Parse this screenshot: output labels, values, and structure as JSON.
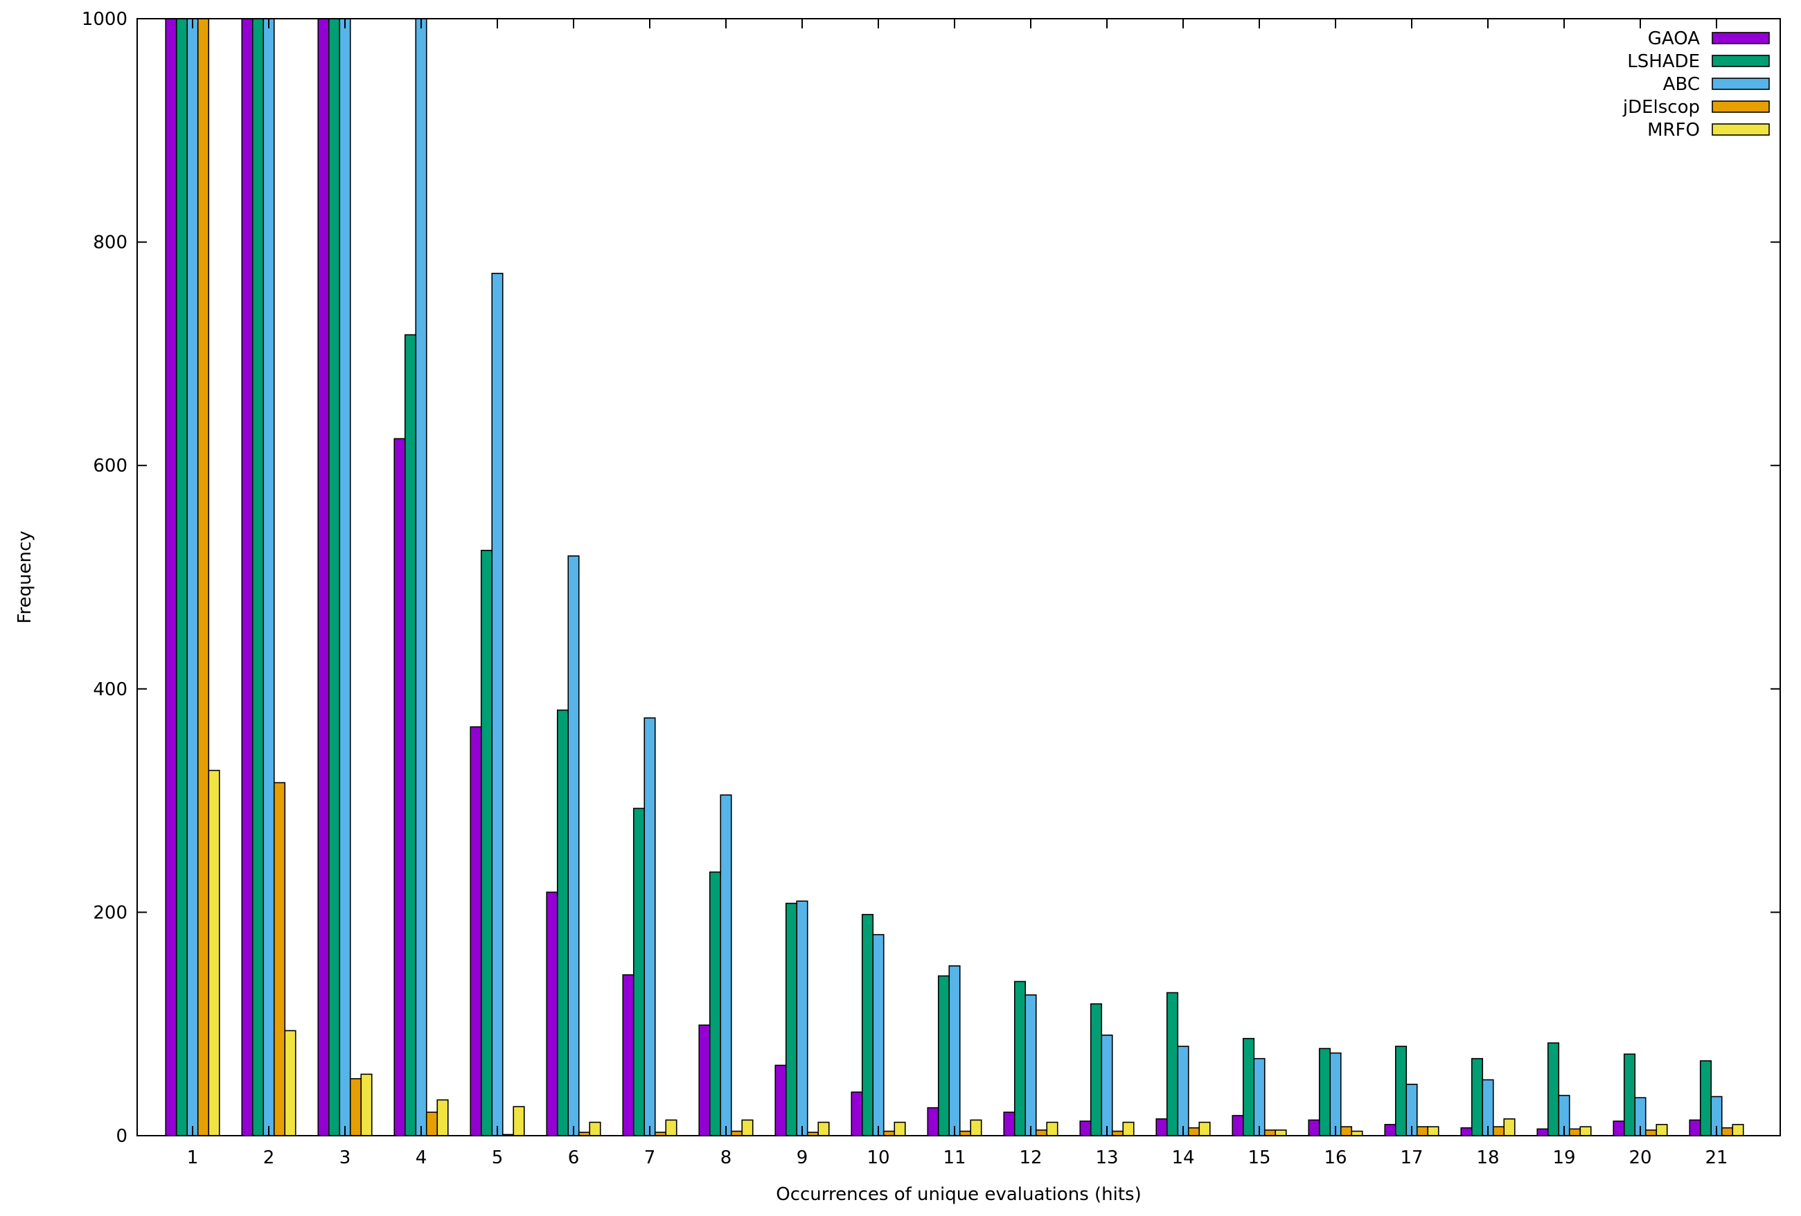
{
  "chart_data": {
    "type": "bar",
    "title": "",
    "xlabel": "Occurrences of unique evaluations (hits)",
    "ylabel": "Frequency",
    "ylim": [
      0,
      1000
    ],
    "yticks": [
      0,
      200,
      400,
      600,
      800,
      1000
    ],
    "grid": false,
    "legend_position": "top-right",
    "categories": [
      "1",
      "2",
      "3",
      "4",
      "5",
      "6",
      "7",
      "8",
      "9",
      "10",
      "11",
      "12",
      "13",
      "14",
      "15",
      "16",
      "17",
      "18",
      "19",
      "20",
      "21"
    ],
    "series": [
      {
        "name": "GAOA",
        "color": "#9400d3",
        "values": [
          1000,
          1000,
          1000,
          624,
          366,
          218,
          144,
          99,
          63,
          39,
          25,
          21,
          13,
          15,
          18,
          14,
          10,
          7,
          6,
          13,
          14
        ]
      },
      {
        "name": "LSHADE",
        "color": "#009e73",
        "values": [
          1000,
          1000,
          1000,
          717,
          524,
          381,
          293,
          236,
          208,
          198,
          143,
          138,
          118,
          128,
          87,
          78,
          80,
          69,
          83,
          73,
          67
        ]
      },
      {
        "name": "ABC",
        "color": "#56b4e9",
        "values": [
          1000,
          1000,
          1000,
          1000,
          772,
          519,
          374,
          305,
          210,
          180,
          152,
          126,
          90,
          80,
          69,
          74,
          46,
          50,
          36,
          34,
          35
        ]
      },
      {
        "name": "jDElscop",
        "color": "#e69f00",
        "values": [
          1000,
          316,
          51,
          21,
          1,
          3,
          3,
          4,
          3,
          4,
          4,
          5,
          4,
          7,
          5,
          8,
          8,
          8,
          6,
          5,
          7
        ]
      },
      {
        "name": "MRFO",
        "color": "#f0e442",
        "values": [
          327,
          94,
          55,
          32,
          26,
          12,
          14,
          14,
          12,
          12,
          14,
          12,
          12,
          12,
          5,
          4,
          8,
          15,
          8,
          10,
          10
        ]
      }
    ]
  }
}
